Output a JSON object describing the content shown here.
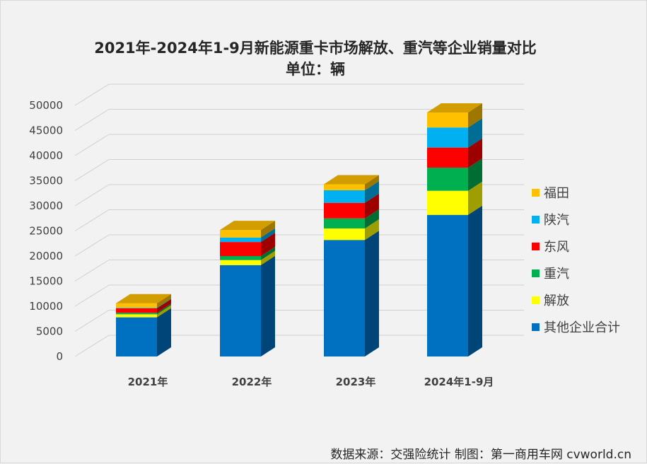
{
  "chart_data": {
    "type": "bar",
    "stacked": true,
    "title": "2021年-2024年1-9月新能源重卡市场解放、重汽等企业销量对比",
    "subtitle": "单位：辆",
    "categories": [
      "2021年",
      "2022年",
      "2023年",
      "2024年1-9月"
    ],
    "ylim": [
      0,
      50000
    ],
    "yticks": [
      0,
      5000,
      10000,
      15000,
      20000,
      25000,
      30000,
      35000,
      40000,
      45000,
      50000
    ],
    "grid": true,
    "legend_position": "right",
    "series": [
      {
        "name": "其他企业合计",
        "color": "#0070C0",
        "values": [
          7800,
          18200,
          23200,
          28200
        ]
      },
      {
        "name": "解放",
        "color": "#FFFF00",
        "values": [
          600,
          1000,
          2300,
          4800
        ]
      },
      {
        "name": "重汽",
        "color": "#00B050",
        "values": [
          300,
          800,
          2000,
          4600
        ]
      },
      {
        "name": "东风",
        "color": "#FF0000",
        "values": [
          900,
          2800,
          3100,
          4000
        ]
      },
      {
        "name": "陕汽",
        "color": "#00B0F0",
        "values": [
          100,
          900,
          2500,
          4000
        ]
      },
      {
        "name": "福田",
        "color": "#FFC000",
        "values": [
          900,
          1500,
          1200,
          3000
        ]
      }
    ]
  },
  "footer": {
    "source": "数据来源：交强险统计  制图：第一商用车网 cvworld.cn"
  }
}
